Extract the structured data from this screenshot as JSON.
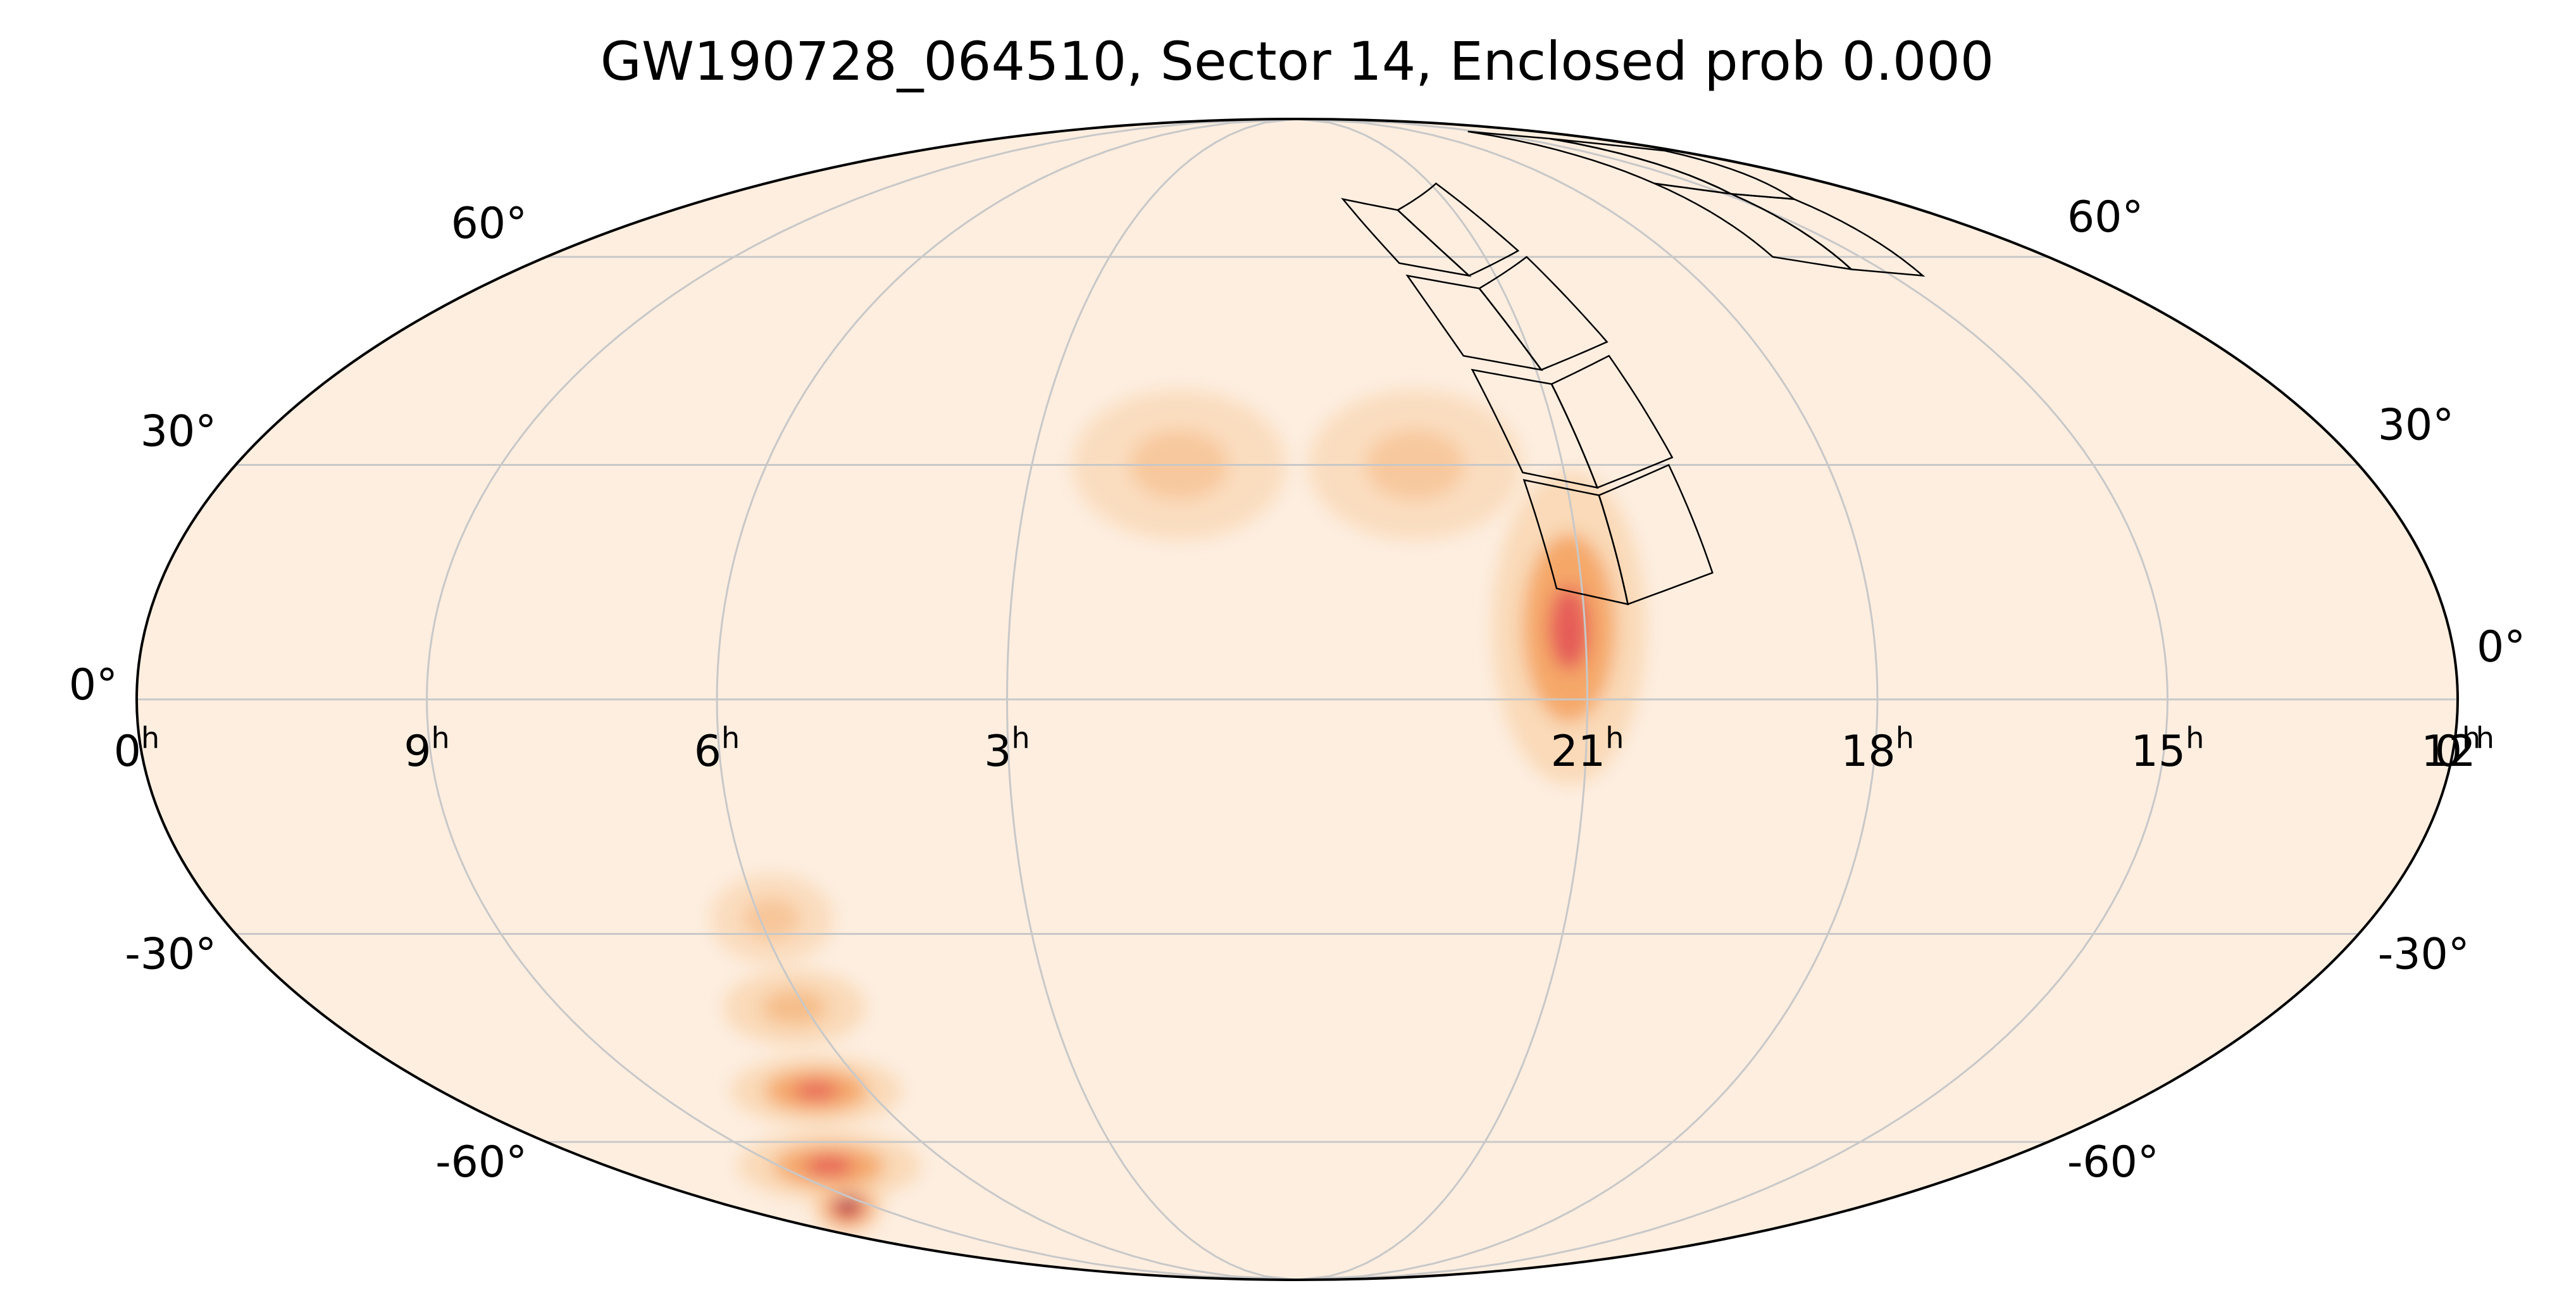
{
  "chart_data": {
    "type": "heatmap",
    "projection": "mollweide",
    "title": "GW190728_064510, Sector 14, Enclosed prob 0.000",
    "grid": true,
    "colormap": "hot_r",
    "colors": {
      "background": "#fdeee0",
      "grid": "#c8c8c8",
      "outline": "#000000",
      "footprint": "#000000",
      "peak": "#6e0a2c",
      "high": "#d8174a",
      "mid": "#f4a15e",
      "low": "#f9d4ae"
    },
    "ra_ticks_hours": [
      0,
      21,
      18,
      15,
      12,
      9,
      6,
      3,
      0
    ],
    "ra_tick_labels": [
      {
        "value": "0",
        "unit": "h"
      },
      {
        "value": "21",
        "unit": "h"
      },
      {
        "value": "18",
        "unit": "h"
      },
      {
        "value": "15",
        "unit": "h"
      },
      {
        "value": "12",
        "unit": "h"
      },
      {
        "value": "9",
        "unit": "h"
      },
      {
        "value": "6",
        "unit": "h"
      },
      {
        "value": "3",
        "unit": "h"
      },
      {
        "value": "0",
        "unit": "h"
      }
    ],
    "dec_ticks": [
      60,
      30,
      0,
      -30,
      -60
    ],
    "dec_labels_left": [
      "60°",
      "30°",
      "0°",
      "-30°",
      "-60°"
    ],
    "dec_labels_right": [
      "60°",
      "30°",
      "0°",
      "-30°",
      "-60°"
    ],
    "probability_regions": [
      {
        "ra_deg": 318.0,
        "dec_deg": 12.0,
        "sigma_ra": 1.8,
        "sigma_dec": 3.5,
        "weight": 1.0
      },
      {
        "ra_deg": 317.3,
        "dec_deg": 6.5,
        "sigma_ra": 1.8,
        "sigma_dec": 3.5,
        "weight": 1.0
      },
      {
        "ra_deg": 317.5,
        "dec_deg": 9.0,
        "sigma_ra": 4.0,
        "sigma_dec": 9.0,
        "weight": 0.35
      },
      {
        "ra_deg": 142.0,
        "dec_deg": -71.0,
        "sigma_ra": 3.5,
        "sigma_dec": 1.6,
        "weight": 1.0
      },
      {
        "ra_deg": 122.0,
        "dec_deg": -64.0,
        "sigma_ra": 8.0,
        "sigma_dec": 2.0,
        "weight": 0.45
      },
      {
        "ra_deg": 101.0,
        "dec_deg": -52.0,
        "sigma_ra": 6.0,
        "sigma_dec": 2.0,
        "weight": 0.3
      },
      {
        "ra_deg": 92.0,
        "dec_deg": -40.0,
        "sigma_ra": 5.0,
        "sigma_dec": 2.5,
        "weight": 0.2
      },
      {
        "ra_deg": 88.0,
        "dec_deg": -28.0,
        "sigma_ra": 4.0,
        "sigma_dec": 3.0,
        "weight": 0.08
      },
      {
        "ra_deg": 340.0,
        "dec_deg": 30.0,
        "sigma_ra": 7.0,
        "sigma_dec": 5.0,
        "weight": 0.05
      },
      {
        "ra_deg": 20.0,
        "dec_deg": 30.0,
        "sigma_ra": 7.0,
        "sigma_dec": 5.0,
        "weight": 0.05
      }
    ],
    "footprint_tiles": [
      [
        [
          294,
          16
        ],
        [
          308,
          12
        ],
        [
          310,
          26
        ],
        [
          297,
          30
        ]
      ],
      [
        [
          308,
          12
        ],
        [
          319,
          14
        ],
        [
          322,
          28
        ],
        [
          310,
          26
        ]
      ],
      [
        [
          296,
          31
        ],
        [
          310,
          27
        ],
        [
          313,
          41
        ],
        [
          300,
          45
        ]
      ],
      [
        [
          310,
          27
        ],
        [
          322,
          29
        ],
        [
          327,
          43
        ],
        [
          313,
          41
        ]
      ],
      [
        [
          299,
          47
        ],
        [
          314,
          43
        ],
        [
          320,
          55
        ],
        [
          305,
          60
        ]
      ],
      [
        [
          314,
          43
        ],
        [
          328,
          45
        ],
        [
          335,
          57
        ],
        [
          320,
          55
        ]
      ],
      [
        [
          306,
          61
        ],
        [
          321,
          57
        ],
        [
          331,
          68
        ],
        [
          313,
          73
        ]
      ],
      [
        [
          321,
          57
        ],
        [
          336,
          59
        ],
        [
          346,
          70
        ],
        [
          331,
          68
        ]
      ],
      [
        [
          218,
          57
        ],
        [
          232,
          58
        ],
        [
          223,
          71
        ],
        [
          208,
          70
        ]
      ],
      [
        [
          232,
          58
        ],
        [
          246,
          60
        ],
        [
          239,
          73
        ],
        [
          223,
          71
        ]
      ],
      [
        [
          208,
          70
        ],
        [
          223,
          71
        ],
        [
          208,
          83
        ],
        [
          185,
          80
        ]
      ],
      [
        [
          223,
          71
        ],
        [
          239,
          73
        ],
        [
          232,
          85
        ],
        [
          208,
          83
        ]
      ]
    ]
  }
}
